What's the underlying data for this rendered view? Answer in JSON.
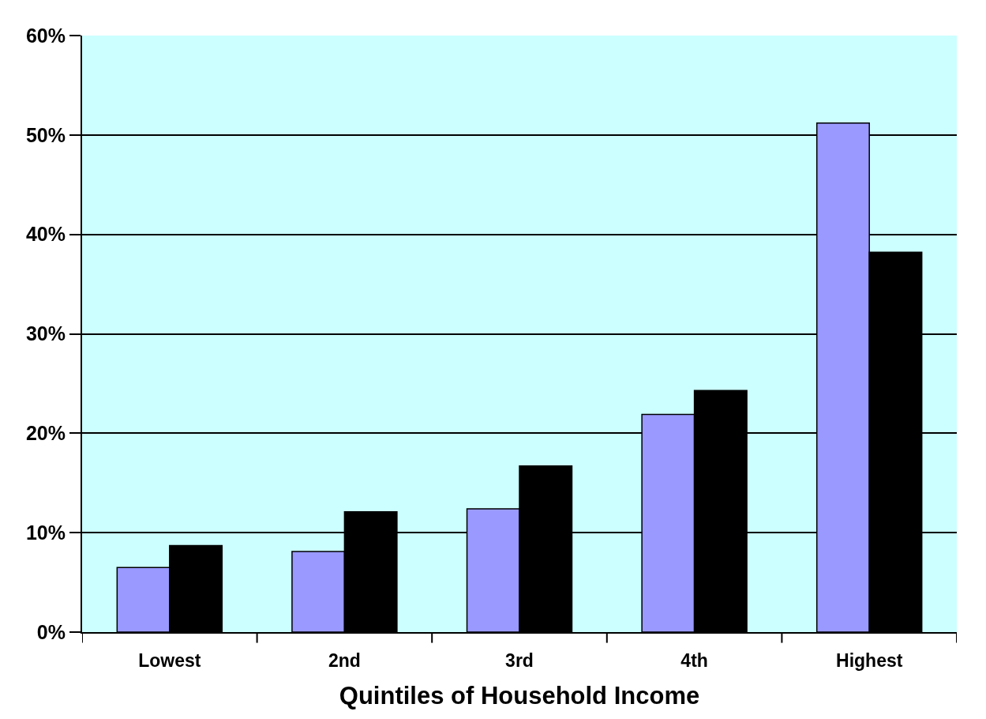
{
  "chart_data": {
    "type": "bar",
    "xlabel": "Quintiles of Household Income",
    "categories": [
      "Lowest",
      "2nd",
      "3rd",
      "4th",
      "Highest"
    ],
    "series": [
      {
        "color": "#9999ff",
        "values": [
          6.5,
          8.1,
          12.4,
          21.9,
          51.2
        ]
      },
      {
        "color": "#000000",
        "values": [
          8.7,
          12.1,
          16.7,
          24.3,
          38.2
        ]
      }
    ],
    "ylim": [
      0,
      60
    ],
    "yticks": [
      {
        "value": 0,
        "label": "0%"
      },
      {
        "value": 10,
        "label": "10%"
      },
      {
        "value": 20,
        "label": "20%"
      },
      {
        "value": 30,
        "label": "30%"
      },
      {
        "value": 40,
        "label": "40%"
      },
      {
        "value": 50,
        "label": "50%"
      },
      {
        "value": 60,
        "label": "60%"
      }
    ],
    "grid": "y"
  }
}
